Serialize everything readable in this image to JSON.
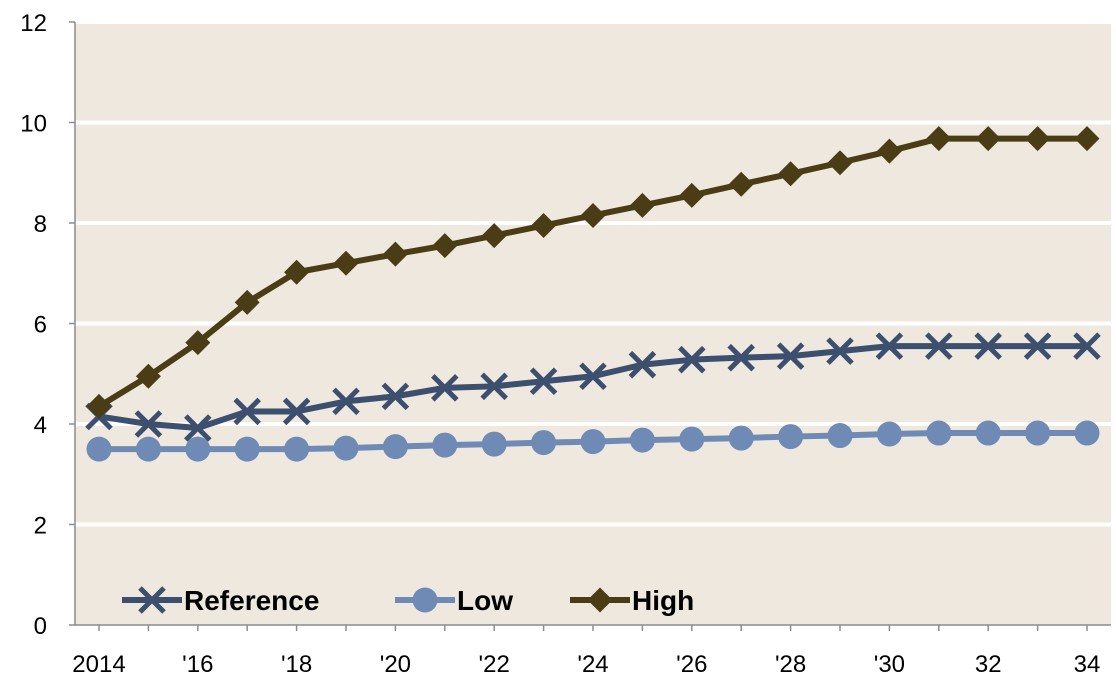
{
  "chart_data": {
    "type": "line",
    "title": "",
    "xlabel": "",
    "ylabel": "",
    "x": [
      2014,
      2015,
      2016,
      2017,
      2018,
      2019,
      2020,
      2021,
      2022,
      2023,
      2024,
      2025,
      2026,
      2027,
      2028,
      2029,
      2030,
      2031,
      2032,
      2033,
      2034
    ],
    "x_tick_labels": [
      {
        "x": 2014,
        "label": "2014"
      },
      {
        "x": 2016,
        "label": "'16"
      },
      {
        "x": 2018,
        "label": "'18"
      },
      {
        "x": 2020,
        "label": "'20"
      },
      {
        "x": 2022,
        "label": "'22"
      },
      {
        "x": 2024,
        "label": "'24"
      },
      {
        "x": 2026,
        "label": "'26"
      },
      {
        "x": 2028,
        "label": "'28"
      },
      {
        "x": 2030,
        "label": "'30"
      },
      {
        "x": 2032,
        "label": "32"
      },
      {
        "x": 2034,
        "label": "34"
      }
    ],
    "y_ticks": [
      "0",
      "2",
      "4",
      "6",
      "8",
      "10",
      "12"
    ],
    "ylim": [
      0,
      12
    ],
    "grid": "horizontal",
    "legend_position": "bottom-left",
    "plot_background": "#EEE8DE",
    "series": [
      {
        "name": "Reference",
        "marker": "x",
        "color": "#3D4F6E",
        "values": [
          4.15,
          4.0,
          3.92,
          4.25,
          4.25,
          4.45,
          4.55,
          4.72,
          4.75,
          4.85,
          4.95,
          5.18,
          5.28,
          5.32,
          5.35,
          5.45,
          5.55,
          5.55,
          5.55,
          5.55,
          5.55
        ]
      },
      {
        "name": "Low",
        "marker": "circle",
        "color": "#6F8BB5",
        "values": [
          3.5,
          3.5,
          3.5,
          3.5,
          3.5,
          3.52,
          3.55,
          3.58,
          3.6,
          3.63,
          3.65,
          3.68,
          3.7,
          3.72,
          3.75,
          3.77,
          3.8,
          3.82,
          3.82,
          3.82,
          3.82
        ]
      },
      {
        "name": "High",
        "marker": "diamond",
        "color": "#4A3C14",
        "values": [
          4.35,
          4.95,
          5.62,
          6.42,
          7.02,
          7.2,
          7.38,
          7.55,
          7.75,
          7.95,
          8.15,
          8.35,
          8.55,
          8.77,
          8.98,
          9.2,
          9.43,
          9.68,
          9.68,
          9.68,
          9.68
        ]
      }
    ]
  }
}
